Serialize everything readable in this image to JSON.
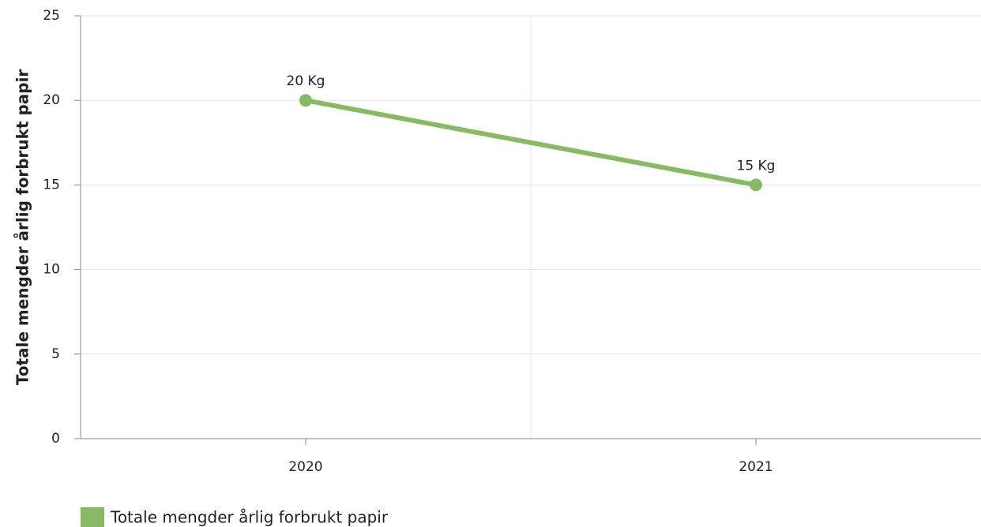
{
  "chart_data": {
    "type": "line",
    "y_label": "Totale mengder årlig forbrukt papir",
    "categories": [
      "2020",
      "2021"
    ],
    "series": [
      {
        "name": "Totale mengder årlig forbrukt papir",
        "color": "#86bb63",
        "values": [
          20,
          15
        ],
        "value_labels": [
          "20 Kg",
          "15 Kg"
        ]
      }
    ],
    "ylim": [
      0,
      25
    ],
    "yticks": [
      0,
      5,
      10,
      15,
      20,
      25
    ],
    "grid": true,
    "legend": "bottom-left"
  }
}
